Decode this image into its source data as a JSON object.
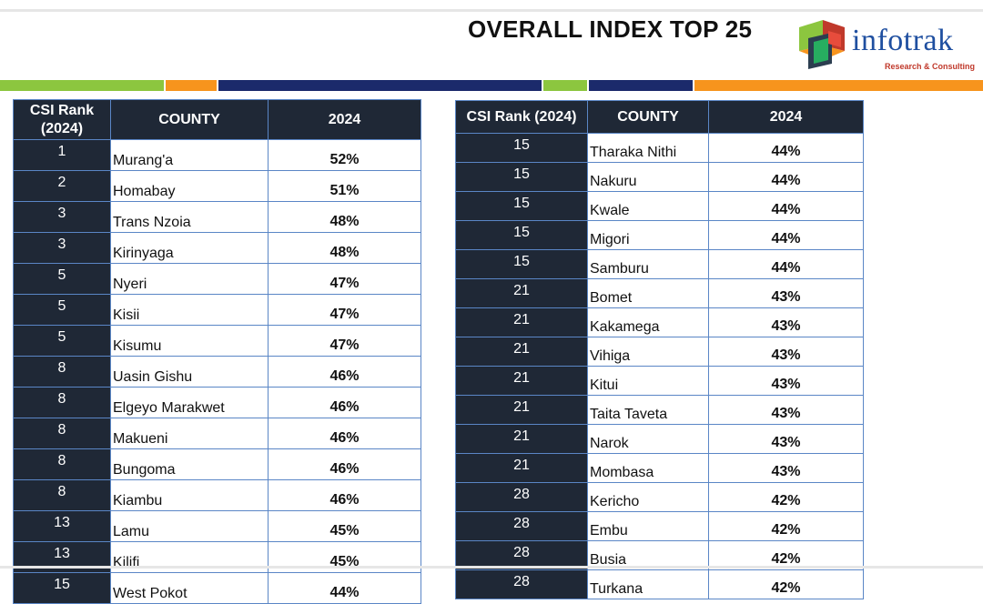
{
  "title": "OVERALL INDEX TOP 25",
  "logo": {
    "name": "infotrak",
    "tagline": "Research & Consulting"
  },
  "colors": {
    "header_bg": "#1f2836",
    "border": "#5a86c6",
    "stripe_green": "#8cc63f",
    "stripe_orange": "#f7941d",
    "stripe_navy": "#1b2a6b",
    "logo_blue": "#1f4fa0"
  },
  "left_table": {
    "headers": [
      "CSI Rank (2024)",
      "COUNTY",
      "2024"
    ],
    "rows": [
      {
        "rank": "1",
        "county": "Murang'a",
        "value": "52%"
      },
      {
        "rank": "2",
        "county": "Homabay",
        "value": "51%"
      },
      {
        "rank": "3",
        "county": "Trans Nzoia",
        "value": "48%"
      },
      {
        "rank": "3",
        "county": "Kirinyaga",
        "value": "48%"
      },
      {
        "rank": "5",
        "county": "Nyeri",
        "value": "47%"
      },
      {
        "rank": "5",
        "county": "Kisii",
        "value": "47%"
      },
      {
        "rank": "5",
        "county": "Kisumu",
        "value": "47%"
      },
      {
        "rank": "8",
        "county": "Uasin Gishu",
        "value": "46%"
      },
      {
        "rank": "8",
        "county": "Elgeyo Marakwet",
        "value": "46%"
      },
      {
        "rank": "8",
        "county": "Makueni",
        "value": "46%"
      },
      {
        "rank": "8",
        "county": "Bungoma",
        "value": "46%"
      },
      {
        "rank": "8",
        "county": "Kiambu",
        "value": "46%"
      },
      {
        "rank": "13",
        "county": "Lamu",
        "value": "45%"
      },
      {
        "rank": "13",
        "county": "Kilifi",
        "value": "45%"
      },
      {
        "rank": "15",
        "county": "West Pokot",
        "value": "44%"
      }
    ]
  },
  "right_table": {
    "headers": [
      "CSI Rank (2024)",
      "COUNTY",
      "2024"
    ],
    "rows": [
      {
        "rank": "15",
        "county": "Tharaka Nithi",
        "value": "44%"
      },
      {
        "rank": "15",
        "county": "Nakuru",
        "value": "44%"
      },
      {
        "rank": "15",
        "county": "Kwale",
        "value": "44%"
      },
      {
        "rank": "15",
        "county": "Migori",
        "value": "44%"
      },
      {
        "rank": "15",
        "county": "Samburu",
        "value": "44%"
      },
      {
        "rank": "21",
        "county": "Bomet",
        "value": "43%"
      },
      {
        "rank": "21",
        "county": "Kakamega",
        "value": "43%"
      },
      {
        "rank": "21",
        "county": "Vihiga",
        "value": "43%"
      },
      {
        "rank": "21",
        "county": "Kitui",
        "value": "43%"
      },
      {
        "rank": "21",
        "county": "Taita Taveta",
        "value": "43%"
      },
      {
        "rank": "21",
        "county": "Narok",
        "value": "43%"
      },
      {
        "rank": "21",
        "county": "Mombasa",
        "value": "43%"
      },
      {
        "rank": "28",
        "county": "Kericho",
        "value": "42%"
      },
      {
        "rank": "28",
        "county": "Embu",
        "value": "42%"
      },
      {
        "rank": "28",
        "county": "Busia",
        "value": "42%"
      },
      {
        "rank": "28",
        "county": "Turkana",
        "value": "42%"
      }
    ]
  }
}
